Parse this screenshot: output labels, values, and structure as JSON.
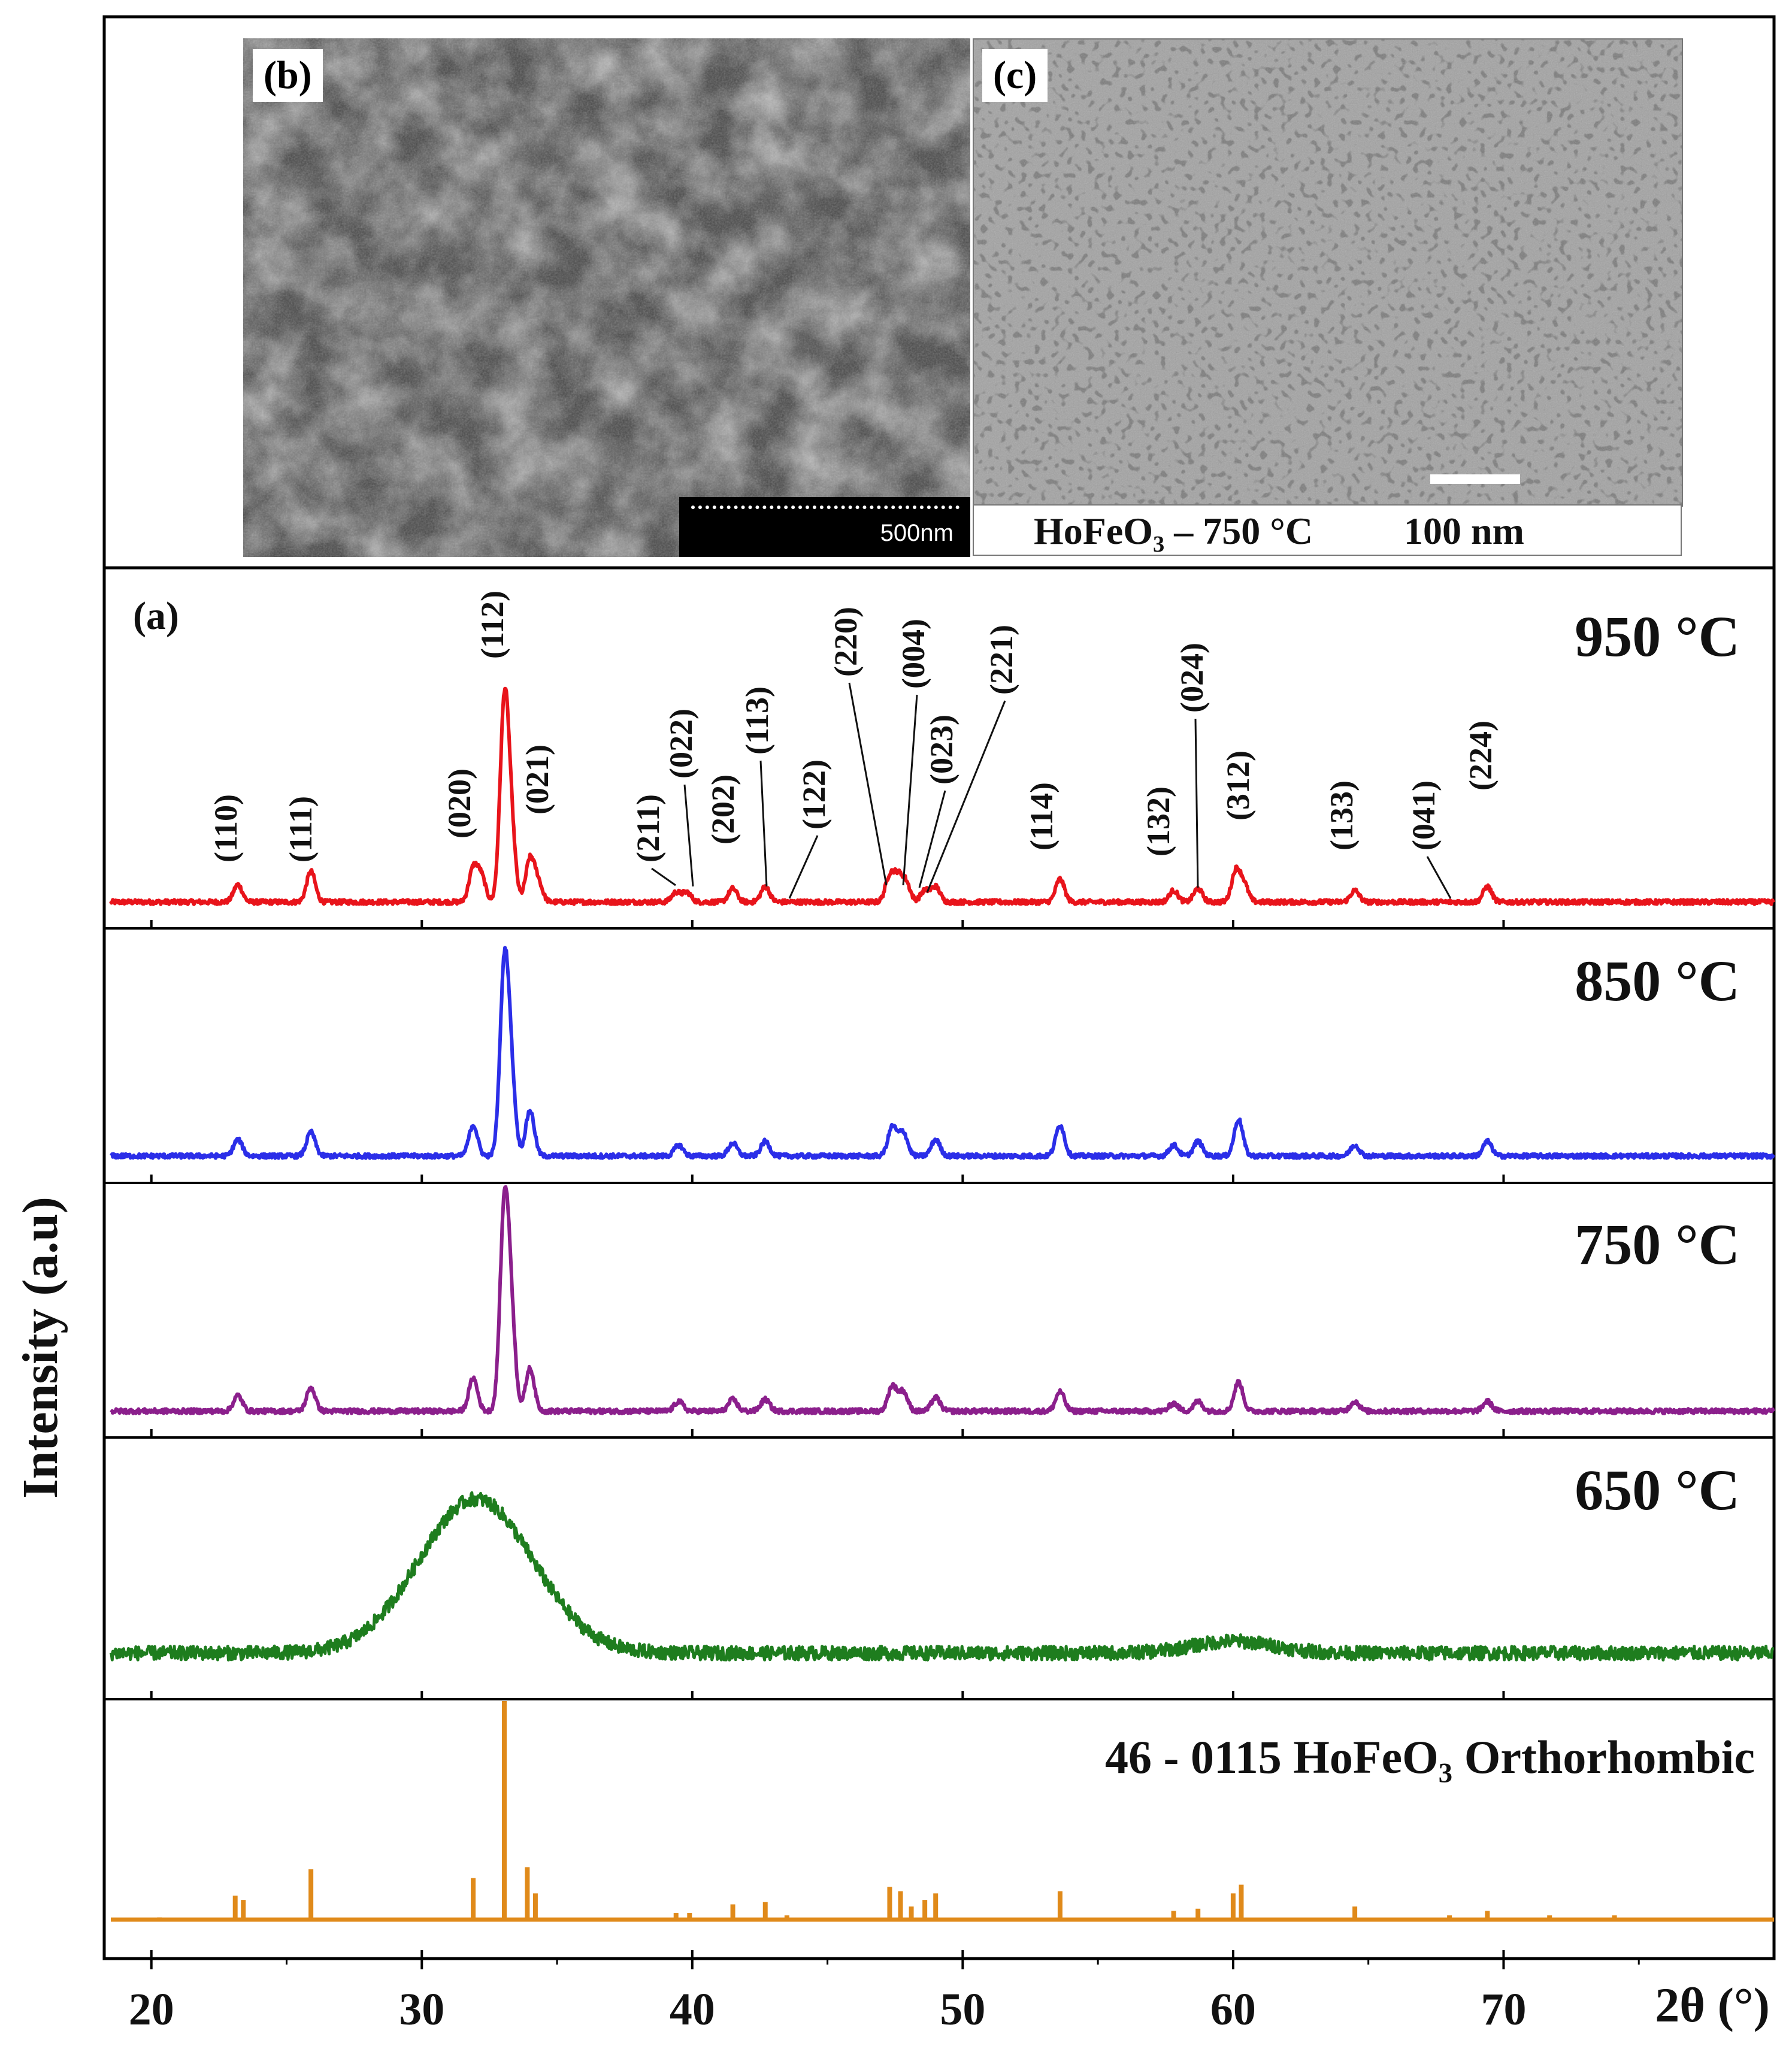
{
  "panels": {
    "b": {
      "label": "(b)",
      "scale_text": "500nm"
    },
    "c": {
      "label": "(c)",
      "caption": "HoFeO₃ – 750 °C",
      "scale_text": "100 nm"
    },
    "a": {
      "label": "(a)"
    }
  },
  "chart_data": {
    "type": "line",
    "title": "",
    "xlabel": "2θ (°)",
    "ylabel": "Intensity (a.u)",
    "xlim": [
      18.5,
      80
    ],
    "xticks": [
      20,
      30,
      40,
      50,
      60,
      70
    ],
    "series": [
      {
        "name": "950 °C",
        "color": "#e8141b",
        "baseline": 0,
        "peaks": [
          {
            "x": 23.2,
            "h": 0.09
          },
          {
            "x": 25.9,
            "h": 0.16
          },
          {
            "x": 31.9,
            "h": 0.17
          },
          {
            "x": 32.2,
            "h": 0.13
          },
          {
            "x": 33.05,
            "h": 1.0
          },
          {
            "x": 33.3,
            "h": 0.35
          },
          {
            "x": 34.0,
            "h": 0.22
          },
          {
            "x": 34.3,
            "h": 0.1
          },
          {
            "x": 39.4,
            "h": 0.05
          },
          {
            "x": 39.8,
            "h": 0.05
          },
          {
            "x": 41.5,
            "h": 0.07
          },
          {
            "x": 42.7,
            "h": 0.08
          },
          {
            "x": 47.3,
            "h": 0.13
          },
          {
            "x": 47.6,
            "h": 0.12
          },
          {
            "x": 47.9,
            "h": 0.1
          },
          {
            "x": 48.6,
            "h": 0.06
          },
          {
            "x": 49.0,
            "h": 0.08
          },
          {
            "x": 53.6,
            "h": 0.12
          },
          {
            "x": 57.8,
            "h": 0.06
          },
          {
            "x": 58.7,
            "h": 0.07
          },
          {
            "x": 60.1,
            "h": 0.16
          },
          {
            "x": 60.4,
            "h": 0.09
          },
          {
            "x": 64.5,
            "h": 0.06
          },
          {
            "x": 69.4,
            "h": 0.08
          }
        ]
      },
      {
        "name": "850 °C",
        "color": "#2b2ee8",
        "baseline": 0,
        "peaks": [
          {
            "x": 23.2,
            "h": 0.09
          },
          {
            "x": 25.9,
            "h": 0.13
          },
          {
            "x": 31.9,
            "h": 0.17
          },
          {
            "x": 33.05,
            "h": 1.0
          },
          {
            "x": 33.3,
            "h": 0.4
          },
          {
            "x": 34.0,
            "h": 0.25
          },
          {
            "x": 39.5,
            "h": 0.06
          },
          {
            "x": 41.5,
            "h": 0.07
          },
          {
            "x": 42.7,
            "h": 0.08
          },
          {
            "x": 47.4,
            "h": 0.16
          },
          {
            "x": 47.8,
            "h": 0.13
          },
          {
            "x": 49.0,
            "h": 0.09
          },
          {
            "x": 53.6,
            "h": 0.17
          },
          {
            "x": 57.8,
            "h": 0.06
          },
          {
            "x": 58.7,
            "h": 0.08
          },
          {
            "x": 60.2,
            "h": 0.2
          },
          {
            "x": 64.5,
            "h": 0.06
          },
          {
            "x": 69.4,
            "h": 0.08
          }
        ]
      },
      {
        "name": "750 °C",
        "color": "#8b1f8c",
        "baseline": 0,
        "peaks": [
          {
            "x": 23.2,
            "h": 0.08
          },
          {
            "x": 25.9,
            "h": 0.12
          },
          {
            "x": 31.9,
            "h": 0.17
          },
          {
            "x": 33.05,
            "h": 1.0
          },
          {
            "x": 33.3,
            "h": 0.45
          },
          {
            "x": 34.0,
            "h": 0.22
          },
          {
            "x": 39.5,
            "h": 0.05
          },
          {
            "x": 41.5,
            "h": 0.06
          },
          {
            "x": 42.7,
            "h": 0.06
          },
          {
            "x": 47.4,
            "h": 0.13
          },
          {
            "x": 47.8,
            "h": 0.1
          },
          {
            "x": 49.0,
            "h": 0.07
          },
          {
            "x": 53.6,
            "h": 0.1
          },
          {
            "x": 57.8,
            "h": 0.04
          },
          {
            "x": 58.7,
            "h": 0.05
          },
          {
            "x": 60.2,
            "h": 0.15
          },
          {
            "x": 64.5,
            "h": 0.05
          },
          {
            "x": 69.4,
            "h": 0.05
          }
        ]
      },
      {
        "name": "650 °C",
        "color": "#1e7d1e",
        "baseline": 0,
        "broad_hump": {
          "center": 32.0,
          "width": 4.2,
          "h": 0.78
        },
        "secondary_hump": {
          "center": 60.0,
          "width": 3.0,
          "h": 0.06
        }
      },
      {
        "name": "46 - 0115 HoFeO₃ Orthorhombic",
        "color": "#e08a1a",
        "type": "reference_sticks",
        "sticks": [
          {
            "x": 20.3,
            "h": 0.01
          },
          {
            "x": 23.1,
            "h": 0.11
          },
          {
            "x": 23.4,
            "h": 0.09
          },
          {
            "x": 25.9,
            "h": 0.23
          },
          {
            "x": 31.9,
            "h": 0.19
          },
          {
            "x": 33.05,
            "h": 1.0
          },
          {
            "x": 33.9,
            "h": 0.24
          },
          {
            "x": 34.2,
            "h": 0.12
          },
          {
            "x": 39.4,
            "h": 0.03
          },
          {
            "x": 39.9,
            "h": 0.03
          },
          {
            "x": 41.5,
            "h": 0.07
          },
          {
            "x": 42.7,
            "h": 0.08
          },
          {
            "x": 43.5,
            "h": 0.02
          },
          {
            "x": 47.3,
            "h": 0.15
          },
          {
            "x": 47.7,
            "h": 0.13
          },
          {
            "x": 48.1,
            "h": 0.06
          },
          {
            "x": 48.6,
            "h": 0.09
          },
          {
            "x": 49.0,
            "h": 0.12
          },
          {
            "x": 53.6,
            "h": 0.13
          },
          {
            "x": 57.8,
            "h": 0.04
          },
          {
            "x": 58.7,
            "h": 0.05
          },
          {
            "x": 60.0,
            "h": 0.12
          },
          {
            "x": 60.3,
            "h": 0.16
          },
          {
            "x": 64.5,
            "h": 0.06
          },
          {
            "x": 68.0,
            "h": 0.02
          },
          {
            "x": 69.4,
            "h": 0.04
          },
          {
            "x": 71.7,
            "h": 0.02
          },
          {
            "x": 74.1,
            "h": 0.02
          }
        ]
      }
    ],
    "annotations": [
      {
        "text": "(110)",
        "x": 23.2
      },
      {
        "text": "(111)",
        "x": 25.9
      },
      {
        "text": "(020)",
        "x": 31.8
      },
      {
        "text": "(112)",
        "x": 33.05
      },
      {
        "text": "(021)",
        "x": 34.0
      },
      {
        "text": "(211)",
        "x": 39.4
      },
      {
        "text": "(022)",
        "x": 39.8
      },
      {
        "text": "(202)",
        "x": 41.5
      },
      {
        "text": "(113)",
        "x": 42.7
      },
      {
        "text": "(122)",
        "x": 43.4
      },
      {
        "text": "(220)",
        "x": 47.3
      },
      {
        "text": "(004)",
        "x": 47.8
      },
      {
        "text": "(023)",
        "x": 48.6
      },
      {
        "text": "(221)",
        "x": 49.0
      },
      {
        "text": "(114)",
        "x": 53.6
      },
      {
        "text": "(132)",
        "x": 57.8
      },
      {
        "text": "(024)",
        "x": 58.7
      },
      {
        "text": "(312)",
        "x": 60.3
      },
      {
        "text": "(133)",
        "x": 64.5
      },
      {
        "text": "(041)",
        "x": 68.0
      },
      {
        "text": "(224)",
        "x": 69.4
      }
    ]
  }
}
